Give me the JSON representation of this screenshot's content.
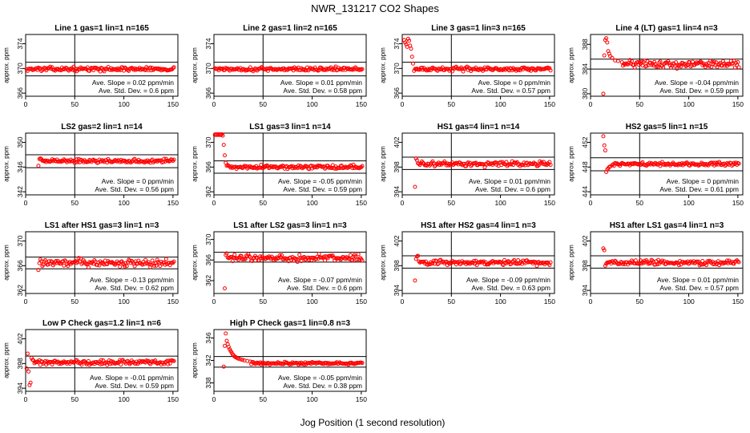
{
  "main_title": "NWR_131217  CO2 Shapes",
  "x_axis_label": "Jog Position (1 second resolution)",
  "chart_data": [
    {
      "type": "scatter",
      "title": "Line 1 gas=1 lin=1 n=165",
      "ylabel": "approx. ppm",
      "xlim": [
        0,
        155
      ],
      "ylim": [
        365.5,
        375.5
      ],
      "yticks": [
        366,
        370,
        374
      ],
      "xticks": [
        0,
        50,
        100,
        150
      ],
      "vline": 50,
      "hlines": [
        371,
        368.8
      ],
      "base": 369.9,
      "noise": 0.15,
      "transient": [],
      "slope_text": "Ave. Slope =  0.02  ppm/min",
      "sd_text": "Ave. Std. Dev. =  0.6  ppm"
    },
    {
      "type": "scatter",
      "title": "Line 2 gas=1 lin=2 n=165",
      "ylabel": "approx. ppm",
      "xlim": [
        0,
        155
      ],
      "ylim": [
        365.5,
        375.5
      ],
      "yticks": [
        366,
        370,
        374
      ],
      "xticks": [
        0,
        50,
        100,
        150
      ],
      "vline": 50,
      "hlines": [
        371,
        368.8
      ],
      "base": 369.9,
      "noise": 0.15,
      "transient": [],
      "slope_text": "Ave. Slope =  0.01  ppm/min",
      "sd_text": "Ave. Std. Dev. =  0.58  ppm"
    },
    {
      "type": "scatter",
      "title": "Line 3 gas=1 lin=3 n=165",
      "ylabel": "approx. ppm",
      "xlim": [
        0,
        155
      ],
      "ylim": [
        365.5,
        375.5
      ],
      "yticks": [
        366,
        370,
        374
      ],
      "xticks": [
        0,
        50,
        100,
        150
      ],
      "vline": 50,
      "hlines": [
        371,
        368.8
      ],
      "base": 369.9,
      "noise": 0.15,
      "transient": [
        [
          2,
          374.6
        ],
        [
          3,
          374.2
        ],
        [
          4,
          373.9
        ],
        [
          5,
          373.5
        ],
        [
          6,
          374.8
        ],
        [
          7,
          374.5
        ],
        [
          8,
          373.7
        ],
        [
          9,
          373.2
        ],
        [
          10,
          371.9
        ],
        [
          11,
          370.8
        ]
      ],
      "slope_text": "Ave. Slope =  0  ppm/min",
      "sd_text": "Ave. Std. Dev. =  0.57  ppm"
    },
    {
      "type": "scatter",
      "title": "Line 4 (LT) gas=1 lin=4 n=3",
      "ylabel": "approx. ppm",
      "xlim": [
        0,
        155
      ],
      "ylim": [
        379.6,
        389.6
      ],
      "yticks": [
        380,
        384,
        388
      ],
      "xticks": [
        0,
        50,
        100,
        150
      ],
      "vline": 50,
      "hlines": [
        385.6,
        384.0
      ],
      "base": 384.8,
      "noise": 0.3,
      "transient": [
        [
          13,
          380.0
        ],
        [
          14,
          386.2
        ],
        [
          15,
          388.7
        ],
        [
          16,
          389.0
        ],
        [
          17,
          388.3
        ],
        [
          18,
          386.9
        ],
        [
          19,
          386.5
        ],
        [
          20,
          386.1
        ],
        [
          22,
          385.8
        ],
        [
          25,
          385.4
        ],
        [
          28,
          385.3
        ],
        [
          32,
          385.1
        ]
      ],
      "slope_text": "Ave. Slope =  -0.04  ppm/min",
      "sd_text": "Ave. Std. Dev. =  0.59  ppm"
    },
    {
      "type": "scatter",
      "title": "LS2 gas=2 lin=1 n=14",
      "ylabel": "approx. ppm",
      "xlim": [
        0,
        155
      ],
      "ylim": [
        341.5,
        351.5
      ],
      "yticks": [
        342,
        346,
        350
      ],
      "xticks": [
        0,
        50,
        100,
        150
      ],
      "vline": 50,
      "hlines": [
        348.0,
        345.9
      ],
      "base": 347.0,
      "noise": 0.15,
      "transient": [
        [
          13,
          346.2
        ],
        [
          14,
          347.3
        ],
        [
          15,
          347.4
        ],
        [
          16,
          347.3
        ]
      ],
      "slope_text": "Ave. Slope =  0  ppm/min",
      "sd_text": "Ave. Std. Dev. =  0.56  ppm"
    },
    {
      "type": "scatter",
      "title": "LS1 gas=3 lin=1 n=14",
      "ylabel": "approx. ppm",
      "xlim": [
        0,
        155
      ],
      "ylim": [
        361.5,
        371.5
      ],
      "yticks": [
        362,
        366,
        370
      ],
      "xticks": [
        0,
        50,
        100,
        150
      ],
      "vline": 50,
      "hlines": [
        367.0,
        365.0
      ],
      "base": 366.0,
      "noise": 0.15,
      "transient": [
        [
          1,
          371.2
        ],
        [
          2,
          371.3
        ],
        [
          3,
          371.2
        ],
        [
          4,
          371.3
        ],
        [
          5,
          371.2
        ],
        [
          6,
          371.3
        ],
        [
          7,
          371.2
        ],
        [
          8,
          371.3
        ],
        [
          9,
          371.1
        ],
        [
          10,
          369.6
        ],
        [
          11,
          367.9
        ],
        [
          12,
          366.7
        ]
      ],
      "slope_text": "Ave. Slope =  -0.05  ppm/min",
      "sd_text": "Ave. Std. Dev. =  0.59  ppm"
    },
    {
      "type": "scatter",
      "title": "HS1 gas=4 lin=1 n=14",
      "ylabel": "approx. ppm",
      "xlim": [
        0,
        155
      ],
      "ylim": [
        393.5,
        403.5
      ],
      "yticks": [
        394,
        398,
        402
      ],
      "xticks": [
        0,
        50,
        100,
        150
      ],
      "vline": 50,
      "hlines": [
        399.6,
        397.6
      ],
      "base": 398.5,
      "noise": 0.2,
      "transient": [
        [
          13,
          394.8
        ],
        [
          14,
          399.4
        ],
        [
          15,
          399.1
        ]
      ],
      "slope_text": "Ave. Slope =  0.01  ppm/min",
      "sd_text": "Ave. Std. Dev. =  0.6  ppm"
    },
    {
      "type": "scatter",
      "title": "HS2 gas=5 lin=1 n=15",
      "ylabel": "approx. ppm",
      "xlim": [
        0,
        155
      ],
      "ylim": [
        443.5,
        453.5
      ],
      "yticks": [
        444,
        448,
        452
      ],
      "xticks": [
        0,
        50,
        100,
        150
      ],
      "vline": 50,
      "hlines": [
        449.5,
        447.4
      ],
      "base": 448.5,
      "noise": 0.15,
      "transient": [
        [
          13,
          453.0
        ],
        [
          14,
          451.5
        ],
        [
          15,
          450.7
        ],
        [
          16,
          447.2
        ],
        [
          17,
          447.6
        ],
        [
          18,
          447.8
        ],
        [
          19,
          448.0
        ],
        [
          20,
          448.1
        ],
        [
          22,
          448.3
        ]
      ],
      "slope_text": "Ave. Slope =  0  ppm/min",
      "sd_text": "Ave. Std. Dev. =  0.61  ppm"
    },
    {
      "type": "scatter",
      "title": "LS1 after HS1 gas=3 lin=1 n=3",
      "ylabel": "approx. ppm",
      "xlim": [
        0,
        155
      ],
      "ylim": [
        361.5,
        371.5
      ],
      "yticks": [
        362,
        366,
        370
      ],
      "xticks": [
        0,
        50,
        100,
        150
      ],
      "vline": 50,
      "hlines": [
        367.4,
        365.5
      ],
      "base": 366.5,
      "noise": 0.3,
      "transient": [
        [
          13,
          365.3
        ],
        [
          14,
          366.4
        ],
        [
          15,
          367.0
        ]
      ],
      "slope_text": "Ave. Slope =  -0.13  ppm/min",
      "sd_text": "Ave. Std. Dev. =  0.62  ppm"
    },
    {
      "type": "scatter",
      "title": "LS1 after LS2 gas=3 lin=1 n=3",
      "ylabel": "approx. ppm",
      "xlim": [
        0,
        155
      ],
      "ylim": [
        359.5,
        371.5
      ],
      "yticks": [
        362,
        366,
        370
      ],
      "xticks": [
        0,
        50,
        100,
        150
      ],
      "vline": 50,
      "hlines": [
        367.5,
        365.6
      ],
      "base": 366.4,
      "noise": 0.3,
      "transient": [
        [
          11,
          360.5
        ],
        [
          12,
          367.0
        ],
        [
          13,
          367.3
        ],
        [
          14,
          366.5
        ]
      ],
      "slope_text": "Ave. Slope =  -0.07  ppm/min",
      "sd_text": "Ave. Std. Dev. =  0.6  ppm"
    },
    {
      "type": "scatter",
      "title": "HS1 after HS2 gas=4 lin=1 n=3",
      "ylabel": "approx. ppm",
      "xlim": [
        0,
        155
      ],
      "ylim": [
        393.5,
        403.5
      ],
      "yticks": [
        394,
        398,
        402
      ],
      "xticks": [
        0,
        50,
        100,
        150
      ],
      "vline": 50,
      "hlines": [
        399.6,
        397.6
      ],
      "base": 398.5,
      "noise": 0.2,
      "transient": [
        [
          13,
          395.6
        ],
        [
          14,
          399.1
        ],
        [
          15,
          399.5
        ],
        [
          16,
          399.6
        ]
      ],
      "slope_text": "Ave. Slope =  -0.09  ppm/min",
      "sd_text": "Ave. Std. Dev. =  0.63  ppm"
    },
    {
      "type": "scatter",
      "title": "HS1 after LS1 gas=4 lin=1 n=3",
      "ylabel": "approx. ppm",
      "xlim": [
        0,
        155
      ],
      "ylim": [
        393.5,
        403.5
      ],
      "yticks": [
        394,
        398,
        402
      ],
      "xticks": [
        0,
        50,
        100,
        150
      ],
      "vline": 50,
      "hlines": [
        399.6,
        397.6
      ],
      "base": 398.5,
      "noise": 0.2,
      "transient": [
        [
          13,
          400.8
        ],
        [
          14,
          400.5
        ],
        [
          15,
          398.0
        ],
        [
          16,
          398.3
        ]
      ],
      "slope_text": "Ave. Slope =  0.01  ppm/min",
      "sd_text": "Ave. Std. Dev. =  0.57  ppm"
    },
    {
      "type": "scatter",
      "title": "Low P Check gas=1.2 lin=1 n=6",
      "ylabel": "approx. ppm",
      "xlim": [
        0,
        155
      ],
      "ylim": [
        393.5,
        403.5
      ],
      "yticks": [
        394,
        398,
        402
      ],
      "xticks": [
        0,
        50,
        100,
        150
      ],
      "vline": 50,
      "hlines": [
        399.2,
        397.3
      ],
      "base": 398.2,
      "noise": 0.2,
      "transient": [
        [
          1,
          397.2
        ],
        [
          2,
          399.6
        ],
        [
          3,
          396.7
        ],
        [
          4,
          394.5
        ],
        [
          5,
          394.9
        ],
        [
          6,
          398.9
        ],
        [
          7,
          398.6
        ],
        [
          8,
          398.5
        ]
      ],
      "slope_text": "Ave. Slope =  -0.01  ppm/min",
      "sd_text": "Ave. Std. Dev. =  0.59  ppm"
    },
    {
      "type": "scatter",
      "title": "High P Check gas=1 lin=0.8 n=3",
      "ylabel": "approx. ppm",
      "xlim": [
        0,
        155
      ],
      "ylim": [
        336.5,
        347.5
      ],
      "yticks": [
        338,
        342,
        346
      ],
      "xticks": [
        0,
        50,
        100,
        150
      ],
      "vline": 50,
      "hlines": [
        342.7,
        340.8
      ],
      "base": 341.5,
      "noise": 0.1,
      "transient": [
        [
          10,
          340.9
        ],
        [
          11,
          344.6
        ],
        [
          12,
          346.8
        ],
        [
          13,
          345.5
        ],
        [
          14,
          344.9
        ],
        [
          15,
          344.4
        ],
        [
          16,
          344.0
        ],
        [
          17,
          343.7
        ],
        [
          18,
          343.4
        ],
        [
          19,
          343.1
        ],
        [
          20,
          342.9
        ],
        [
          21,
          342.7
        ],
        [
          22,
          342.6
        ],
        [
          23,
          342.5
        ],
        [
          24,
          342.4
        ],
        [
          25,
          342.3
        ],
        [
          27,
          342.2
        ],
        [
          29,
          342.1
        ],
        [
          31,
          342.0
        ],
        [
          34,
          341.9
        ],
        [
          37,
          341.8
        ]
      ],
      "slope_text": "Ave. Slope =  -0.05  ppm/min",
      "sd_text": "Ave. Std. Dev. =  0.38  ppm"
    }
  ]
}
